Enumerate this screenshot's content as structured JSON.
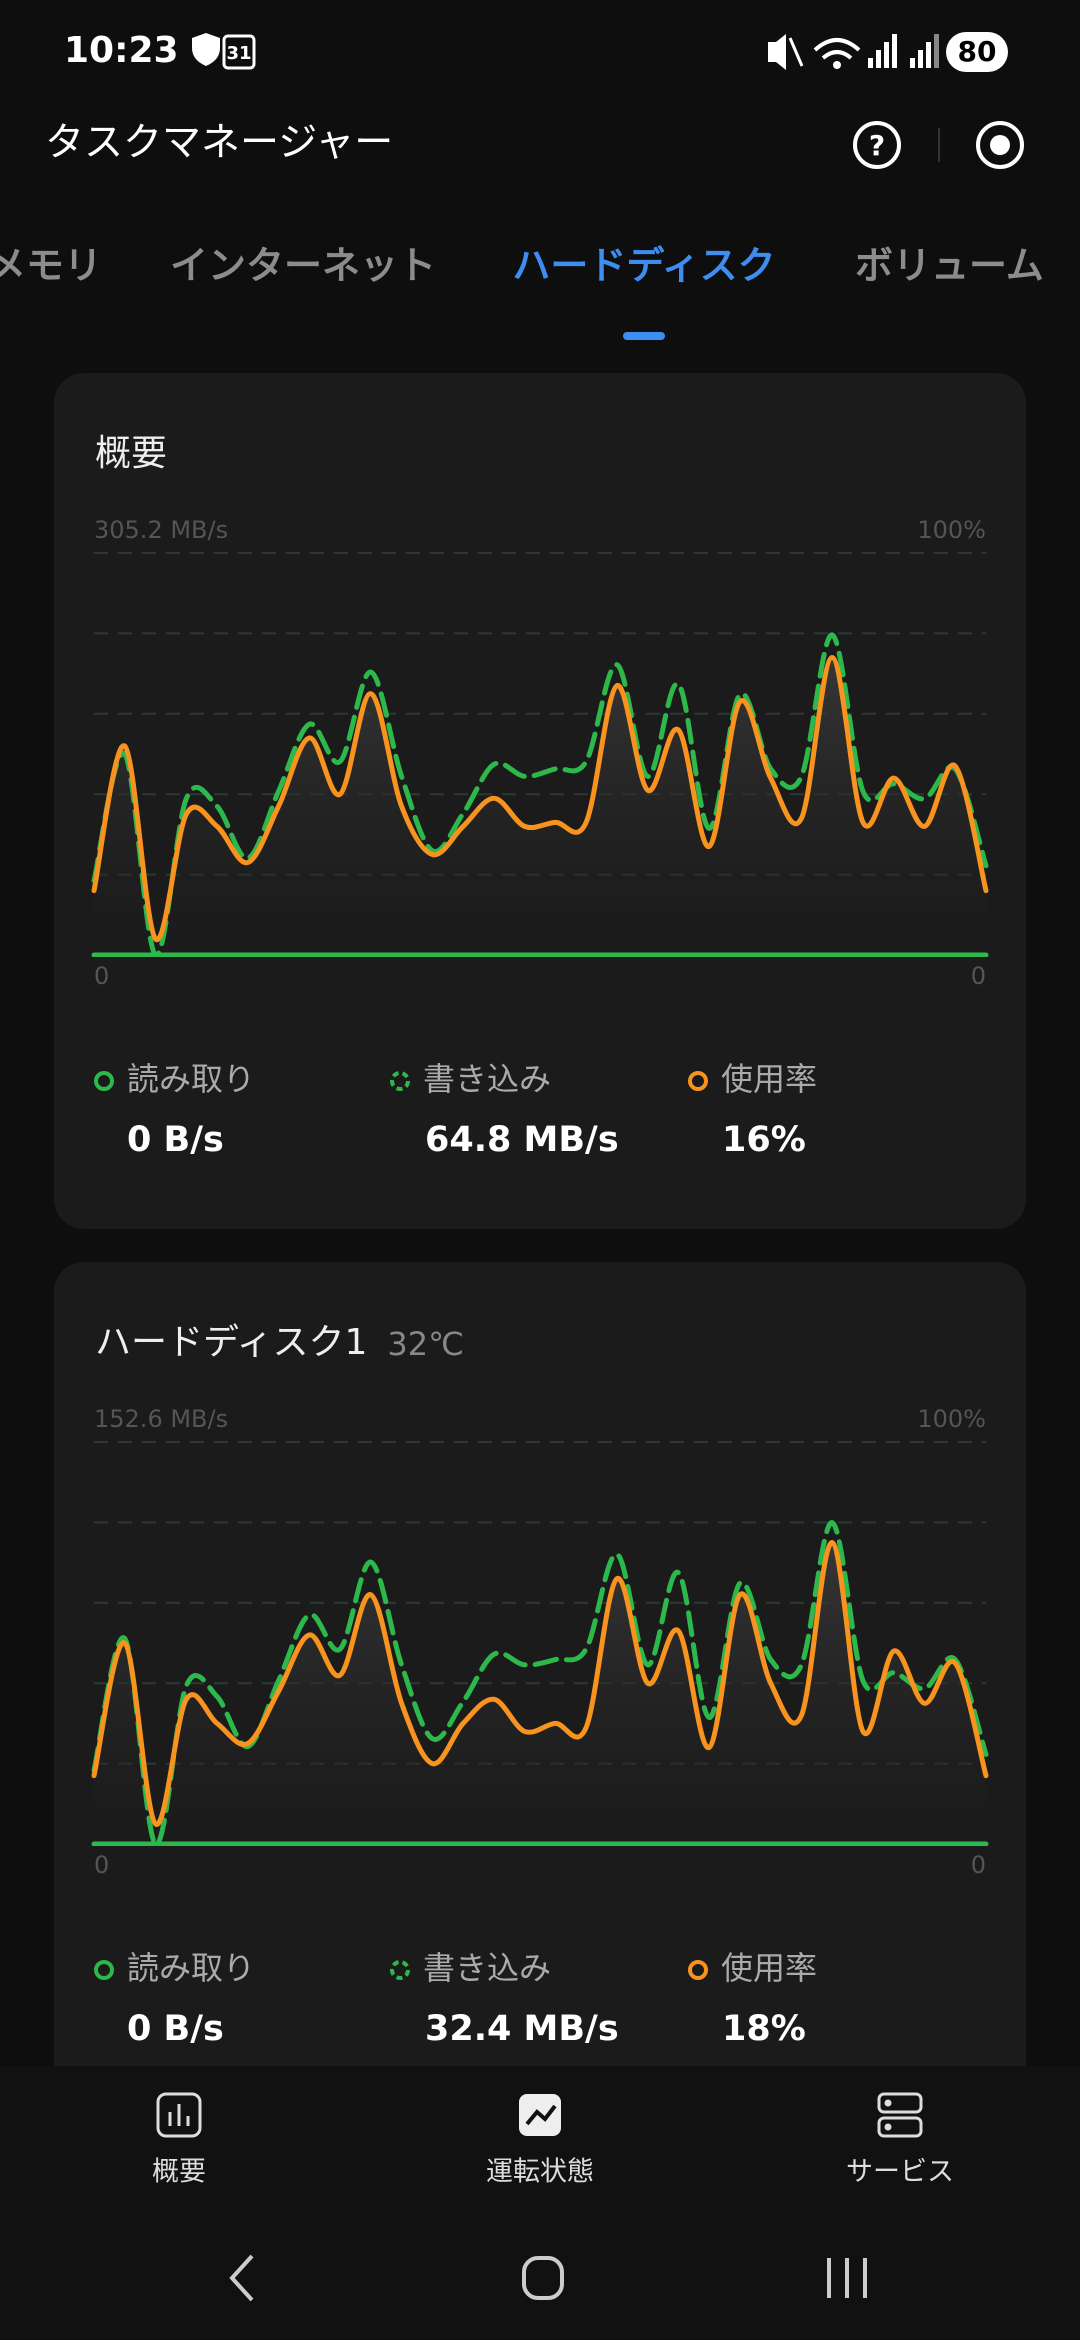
{
  "status_bar": {
    "time": "10:23",
    "calendar": "31",
    "battery": "80"
  },
  "header": {
    "title": "タスクマネージャー"
  },
  "tabs": [
    "メモリ",
    "インターネット",
    "ハードディスク",
    "ボリューム"
  ],
  "cards": [
    {
      "title": "概要",
      "stats": [
        "0 B/s",
        "64.8 MB/s",
        "16%"
      ]
    },
    {
      "title": "ハードディスク1",
      "temperature": "32℃",
      "stats": [
        "0 B/s",
        "32.4 MB/s",
        "18%"
      ]
    }
  ],
  "chart_data": [
    {
      "type": "line",
      "ylim": [
        0,
        305.2
      ],
      "yticks": [
        0,
        {
          "value": 305.2,
          "label": "305.2 MB/s"
        }
      ],
      "y2lim": [
        0,
        100
      ],
      "y2ticks": [
        0,
        {
          "value": 100,
          "label": "100%"
        }
      ],
      "series": [
        {
          "name": "読み取り",
          "color": "#2db84c",
          "values": [
            0,
            0,
            0,
            0,
            0,
            0,
            0,
            0,
            0,
            0,
            0,
            0,
            0,
            0,
            0,
            0,
            0,
            0,
            0,
            0,
            0,
            0,
            0,
            0,
            0,
            0,
            0,
            0,
            0,
            0
          ]
        },
        {
          "name": "書き込み",
          "color": "#2db84c",
          "dashed": true,
          "values": [
            56.5,
            152.6,
            0,
            118.7,
            113.0,
            73.5,
            124.3,
            175.2,
            146.9,
            214.8,
            135.6,
            79.1,
            107.4,
            144.7,
            135.6,
            141.3,
            146.9,
            220.4,
            135.6,
            205.7,
            96.1,
            197.8,
            141.3,
            135.6,
            243.0,
            124.3,
            130.0,
            118.7,
            141.3,
            67.8
          ]
        },
        {
          "name": "使用率",
          "color": "#f7931e",
          "axis": "y2",
          "values": [
            16,
            52,
            4,
            35,
            32,
            23,
            37,
            54,
            40,
            65,
            37,
            25,
            32,
            39,
            32,
            33,
            33,
            67,
            41,
            56,
            27,
            63,
            44,
            34,
            74,
            33,
            44,
            32,
            47,
            16
          ]
        }
      ]
    },
    {
      "type": "line",
      "ylim": [
        0,
        152.6
      ],
      "yticks": [
        0,
        {
          "value": 152.6,
          "label": "152.6 MB/s"
        }
      ],
      "y2lim": [
        0,
        100
      ],
      "y2ticks": [
        0,
        {
          "value": 100,
          "label": "100%"
        }
      ],
      "series": [
        {
          "name": "読み取り",
          "color": "#2db84c",
          "values": [
            0,
            0,
            0,
            0,
            0,
            0,
            0,
            0,
            0,
            0,
            0,
            0,
            0,
            0,
            0,
            0,
            0,
            0,
            0,
            0,
            0,
            0,
            0,
            0,
            0,
            0,
            0,
            0,
            0,
            0
          ]
        },
        {
          "name": "書き込み",
          "color": "#2db84c",
          "dashed": true,
          "values": [
            28,
            78,
            0,
            60,
            56,
            37,
            62,
            87,
            74,
            107,
            68,
            40,
            54,
            72,
            68,
            70,
            74,
            110,
            68,
            103,
            48,
            99,
            70,
            68,
            122,
            62,
            65,
            59,
            70,
            34
          ]
        },
        {
          "name": "使用率",
          "color": "#f7931e",
          "axis": "y2",
          "values": [
            17,
            50,
            5,
            36,
            30,
            25,
            38,
            52,
            42,
            62,
            35,
            20,
            30,
            36,
            28,
            30,
            29,
            66,
            40,
            53,
            24,
            62,
            40,
            32,
            75,
            28,
            48,
            35,
            45,
            17
          ]
        }
      ]
    }
  ],
  "nav": [
    "概要",
    "運転状態",
    "サービス"
  ]
}
